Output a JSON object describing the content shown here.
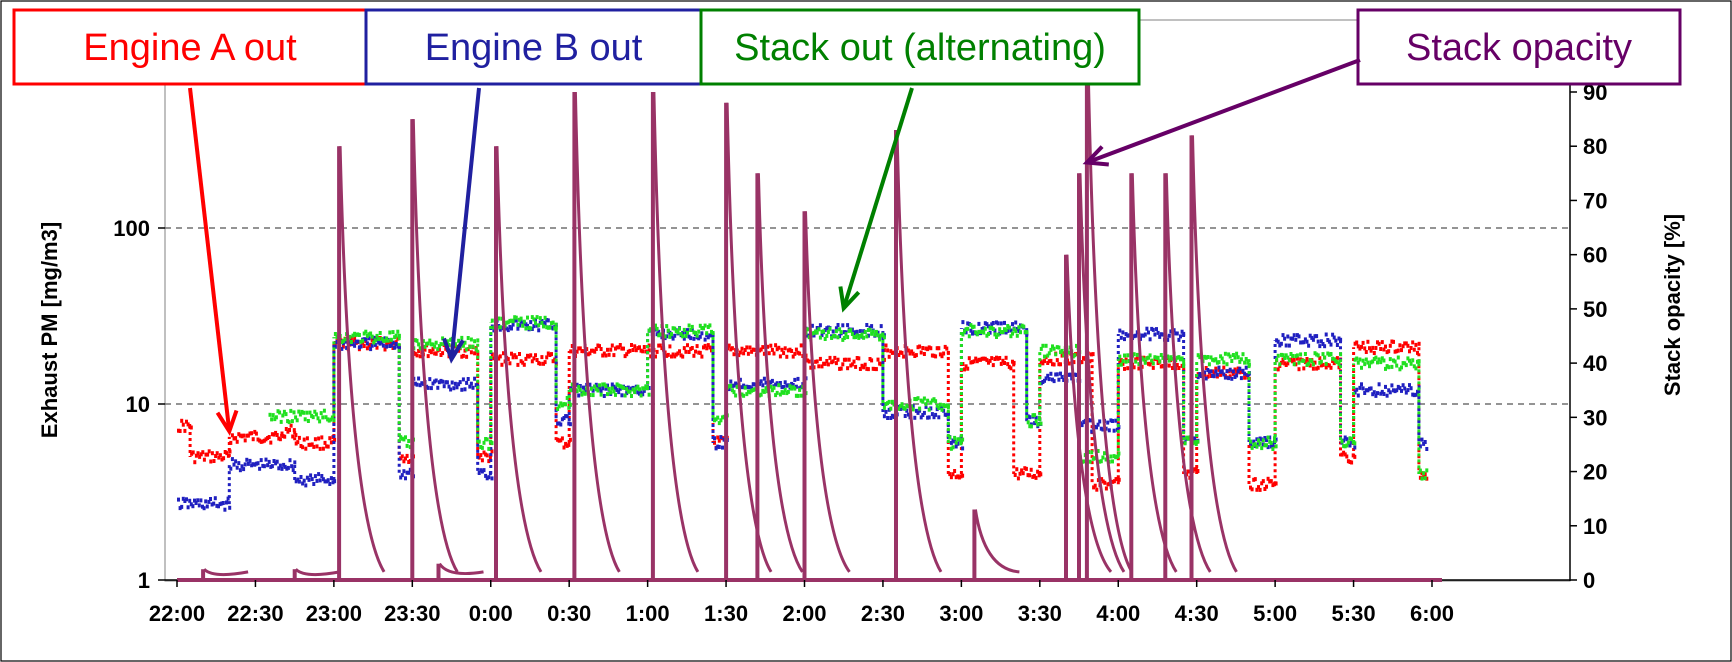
{
  "chart_data": {
    "type": "scatter",
    "title": "",
    "ylabel": "Exhaust PM [mg/m3]",
    "y2label": "Stack opacity [%]",
    "y_scale": "log",
    "ylim": [
      1,
      1000
    ],
    "y2lim": [
      0,
      100
    ],
    "grid": "dashed horizontal at 10 and 100 mg/m3",
    "x_ticks": [
      "22:00",
      "22:30",
      "23:00",
      "23:30",
      "0:00",
      "0:30",
      "1:00",
      "1:30",
      "2:00",
      "2:30",
      "3:00",
      "3:30",
      "4:00",
      "4:30",
      "5:00",
      "5:30",
      "6:00"
    ],
    "y_ticks": [
      "1",
      "10",
      "100"
    ],
    "y2_ticks": [
      "0",
      "10",
      "20",
      "30",
      "40",
      "50",
      "60",
      "70",
      "80",
      "90"
    ],
    "series": [
      {
        "name": "Engine A out",
        "color": "#ff0000",
        "axis": "left",
        "segments": [
          {
            "start": "22:00",
            "end": "22:05",
            "value": 7.5
          },
          {
            "start": "22:05",
            "end": "22:20",
            "value": 5
          },
          {
            "start": "22:20",
            "end": "22:40",
            "value": 6.5
          },
          {
            "start": "22:40",
            "end": "22:45",
            "value": 7
          },
          {
            "start": "22:45",
            "end": "23:00",
            "value": 6
          },
          {
            "start": "23:00",
            "end": "23:25",
            "value": 22
          },
          {
            "start": "23:25",
            "end": "23:30",
            "value": 5
          },
          {
            "start": "23:30",
            "end": "23:55",
            "value": 20
          },
          {
            "start": "23:55",
            "end": "0:00",
            "value": 5
          },
          {
            "start": "0:00",
            "end": "0:25",
            "value": 18
          },
          {
            "start": "0:25",
            "end": "0:30",
            "value": 6
          },
          {
            "start": "0:30",
            "end": "1:00",
            "value": 20
          },
          {
            "start": "1:00",
            "end": "1:25",
            "value": 20
          },
          {
            "start": "1:25",
            "end": "1:30",
            "value": 6
          },
          {
            "start": "1:30",
            "end": "2:00",
            "value": 20
          },
          {
            "start": "2:00",
            "end": "2:30",
            "value": 17
          },
          {
            "start": "2:30",
            "end": "2:55",
            "value": 20
          },
          {
            "start": "2:55",
            "end": "3:00",
            "value": 4
          },
          {
            "start": "3:00",
            "end": "3:20",
            "value": 17
          },
          {
            "start": "3:20",
            "end": "3:30",
            "value": 4
          },
          {
            "start": "3:30",
            "end": "3:40",
            "value": 18
          },
          {
            "start": "3:40",
            "end": "3:50",
            "value": 18
          },
          {
            "start": "3:50",
            "end": "4:00",
            "value": 3.5
          },
          {
            "start": "4:00",
            "end": "4:25",
            "value": 17
          },
          {
            "start": "4:25",
            "end": "4:30",
            "value": 4
          },
          {
            "start": "4:30",
            "end": "4:50",
            "value": 15
          },
          {
            "start": "4:50",
            "end": "5:00",
            "value": 3.5
          },
          {
            "start": "5:00",
            "end": "5:25",
            "value": 17
          },
          {
            "start": "5:25",
            "end": "5:30",
            "value": 5
          },
          {
            "start": "5:30",
            "end": "5:55",
            "value": 21
          },
          {
            "start": "5:55",
            "end": "5:58",
            "value": 4
          }
        ]
      },
      {
        "name": "Engine B out",
        "color": "#2020c0",
        "axis": "left",
        "segments": [
          {
            "start": "22:00",
            "end": "22:20",
            "value": 2.7
          },
          {
            "start": "22:20",
            "end": "22:45",
            "value": 4.5
          },
          {
            "start": "22:45",
            "end": "23:00",
            "value": 3.7
          },
          {
            "start": "23:00",
            "end": "23:25",
            "value": 22
          },
          {
            "start": "23:25",
            "end": "23:30",
            "value": 4
          },
          {
            "start": "23:30",
            "end": "23:55",
            "value": 13
          },
          {
            "start": "23:55",
            "end": "0:00",
            "value": 4
          },
          {
            "start": "0:00",
            "end": "0:25",
            "value": 28
          },
          {
            "start": "0:25",
            "end": "0:30",
            "value": 8
          },
          {
            "start": "0:30",
            "end": "1:00",
            "value": 12
          },
          {
            "start": "1:00",
            "end": "1:25",
            "value": 25
          },
          {
            "start": "1:25",
            "end": "1:30",
            "value": 6
          },
          {
            "start": "1:30",
            "end": "2:00",
            "value": 13
          },
          {
            "start": "2:00",
            "end": "2:30",
            "value": 26
          },
          {
            "start": "2:30",
            "end": "2:55",
            "value": 9
          },
          {
            "start": "2:55",
            "end": "3:00",
            "value": 6
          },
          {
            "start": "3:00",
            "end": "3:25",
            "value": 27
          },
          {
            "start": "3:25",
            "end": "3:30",
            "value": 8
          },
          {
            "start": "3:30",
            "end": "3:45",
            "value": 14
          },
          {
            "start": "3:45",
            "end": "4:00",
            "value": 7.5
          },
          {
            "start": "4:00",
            "end": "4:25",
            "value": 25
          },
          {
            "start": "4:25",
            "end": "4:30",
            "value": 6
          },
          {
            "start": "4:30",
            "end": "4:50",
            "value": 15
          },
          {
            "start": "4:50",
            "end": "5:00",
            "value": 6
          },
          {
            "start": "5:00",
            "end": "5:25",
            "value": 23
          },
          {
            "start": "5:25",
            "end": "5:30",
            "value": 6
          },
          {
            "start": "5:30",
            "end": "5:55",
            "value": 12
          },
          {
            "start": "5:55",
            "end": "5:58",
            "value": 6
          }
        ]
      },
      {
        "name": "Stack out (alternating)",
        "color": "#20e020",
        "axis": "left",
        "segments": [
          {
            "start": "22:35",
            "end": "23:00",
            "value": 8.5
          },
          {
            "start": "23:00",
            "end": "23:25",
            "value": 24
          },
          {
            "start": "23:25",
            "end": "23:30",
            "value": 6
          },
          {
            "start": "23:30",
            "end": "23:55",
            "value": 22
          },
          {
            "start": "23:55",
            "end": "0:00",
            "value": 6
          },
          {
            "start": "0:00",
            "end": "0:25",
            "value": 29
          },
          {
            "start": "0:25",
            "end": "0:30",
            "value": 10
          },
          {
            "start": "0:30",
            "end": "1:00",
            "value": 12
          },
          {
            "start": "1:00",
            "end": "1:25",
            "value": 26
          },
          {
            "start": "1:25",
            "end": "1:30",
            "value": 8
          },
          {
            "start": "1:30",
            "end": "2:00",
            "value": 12
          },
          {
            "start": "2:00",
            "end": "2:30",
            "value": 25
          },
          {
            "start": "2:30",
            "end": "2:55",
            "value": 10
          },
          {
            "start": "2:55",
            "end": "3:00",
            "value": 6
          },
          {
            "start": "3:00",
            "end": "3:25",
            "value": 26
          },
          {
            "start": "3:25",
            "end": "3:30",
            "value": 8
          },
          {
            "start": "3:30",
            "end": "3:45",
            "value": 20
          },
          {
            "start": "3:45",
            "end": "4:00",
            "value": 5
          },
          {
            "start": "4:00",
            "end": "4:25",
            "value": 18
          },
          {
            "start": "4:25",
            "end": "4:30",
            "value": 6
          },
          {
            "start": "4:30",
            "end": "4:50",
            "value": 18
          },
          {
            "start": "4:50",
            "end": "5:00",
            "value": 6
          },
          {
            "start": "5:00",
            "end": "5:25",
            "value": 18
          },
          {
            "start": "5:25",
            "end": "5:30",
            "value": 6
          },
          {
            "start": "5:30",
            "end": "5:55",
            "value": 17
          },
          {
            "start": "5:55",
            "end": "5:58",
            "value": 4
          }
        ]
      },
      {
        "name": "Stack opacity",
        "color": "#993366",
        "axis": "right",
        "spikes": [
          {
            "time": "22:10",
            "value": 2
          },
          {
            "time": "22:45",
            "value": 2
          },
          {
            "time": "23:02",
            "value": 80
          },
          {
            "time": "23:30",
            "value": 85
          },
          {
            "time": "23:40",
            "value": 3
          },
          {
            "time": "0:02",
            "value": 80
          },
          {
            "time": "0:32",
            "value": 90
          },
          {
            "time": "1:02",
            "value": 90
          },
          {
            "time": "1:30",
            "value": 88
          },
          {
            "time": "1:42",
            "value": 75
          },
          {
            "time": "2:00",
            "value": 68
          },
          {
            "time": "2:35",
            "value": 83
          },
          {
            "time": "3:05",
            "value": 13
          },
          {
            "time": "3:40",
            "value": 60
          },
          {
            "time": "3:45",
            "value": 75
          },
          {
            "time": "3:48",
            "value": 97
          },
          {
            "time": "4:05",
            "value": 75
          },
          {
            "time": "4:18",
            "value": 75
          },
          {
            "time": "4:28",
            "value": 82
          }
        ]
      }
    ],
    "annotations": [
      {
        "text": "Engine A out",
        "color": "#ff0000",
        "target_time": "22:20",
        "target_value": 7
      },
      {
        "text": "Engine B out",
        "color": "#2020a0",
        "target_time": "23:45",
        "target_value": 18
      },
      {
        "text": "Stack out (alternating)",
        "color": "#008000",
        "target_time": "2:15",
        "target_value": 35
      },
      {
        "text": "Stack opacity",
        "color": "#660066",
        "target_time": "3:48",
        "target_value": 77
      }
    ]
  }
}
